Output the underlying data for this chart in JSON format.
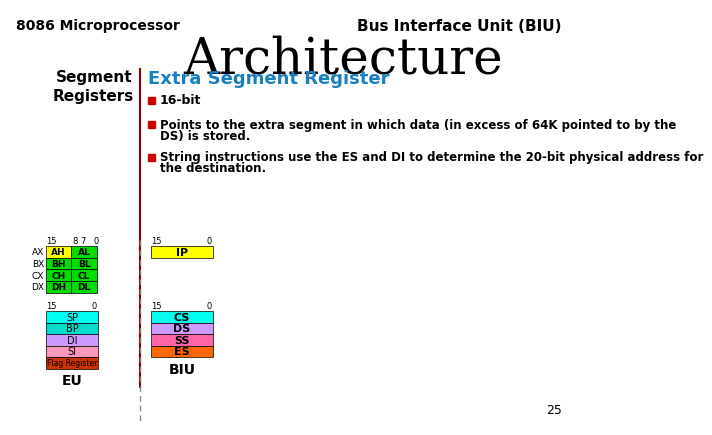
{
  "title_left": "8086 Microprocessor",
  "title_right": "Bus Interface Unit (BIU)",
  "title_main": "Architecture",
  "subtitle": "Extra Segment Register",
  "segment_label": "Segment\nRegisters",
  "bullet1": "16-bit",
  "bullet2_line1": "Points to the extra segment in which data (in excess of 64K pointed to by the",
  "bullet2_line2": "DS) is stored.",
  "bullet3_line1": "String instructions use the ES and DI to determine the 20-bit physical address for",
  "bullet3_line2": "the destination.",
  "page_num": "25",
  "bg_color": "#ffffff",
  "title_color": "#000000",
  "subtitle_color": "#1a7fbf",
  "bullet_color": "#cc0000",
  "eu_general_rows": [
    {
      "label": "AX",
      "h": "AH",
      "l": "AL",
      "hcolor": "#ffff00",
      "lcolor": "#00dd00"
    },
    {
      "label": "BX",
      "h": "BH",
      "l": "BL",
      "hcolor": "#00dd00",
      "lcolor": "#00dd00"
    },
    {
      "label": "CX",
      "h": "CH",
      "l": "CL",
      "hcolor": "#00dd00",
      "lcolor": "#00dd00"
    },
    {
      "label": "DX",
      "h": "DH",
      "l": "DL",
      "hcolor": "#00dd00",
      "lcolor": "#00dd00"
    }
  ],
  "eu_pointer_rows": [
    {
      "label": "SP",
      "color": "#00ffee"
    },
    {
      "label": "BP",
      "color": "#00ddcc"
    },
    {
      "label": "DI",
      "color": "#cc99ff"
    },
    {
      "label": "SI",
      "color": "#ff99bb"
    },
    {
      "label": "Flag Register",
      "color": "#cc3300"
    }
  ],
  "biu_ip": {
    "label": "IP",
    "color": "#ffff00"
  },
  "biu_segment_rows": [
    {
      "label": "CS",
      "color": "#00ffee"
    },
    {
      "label": "DS",
      "color": "#cc99ff"
    },
    {
      "label": "SS",
      "color": "#ff66aa"
    },
    {
      "label": "ES",
      "color": "#ff6600"
    }
  ]
}
